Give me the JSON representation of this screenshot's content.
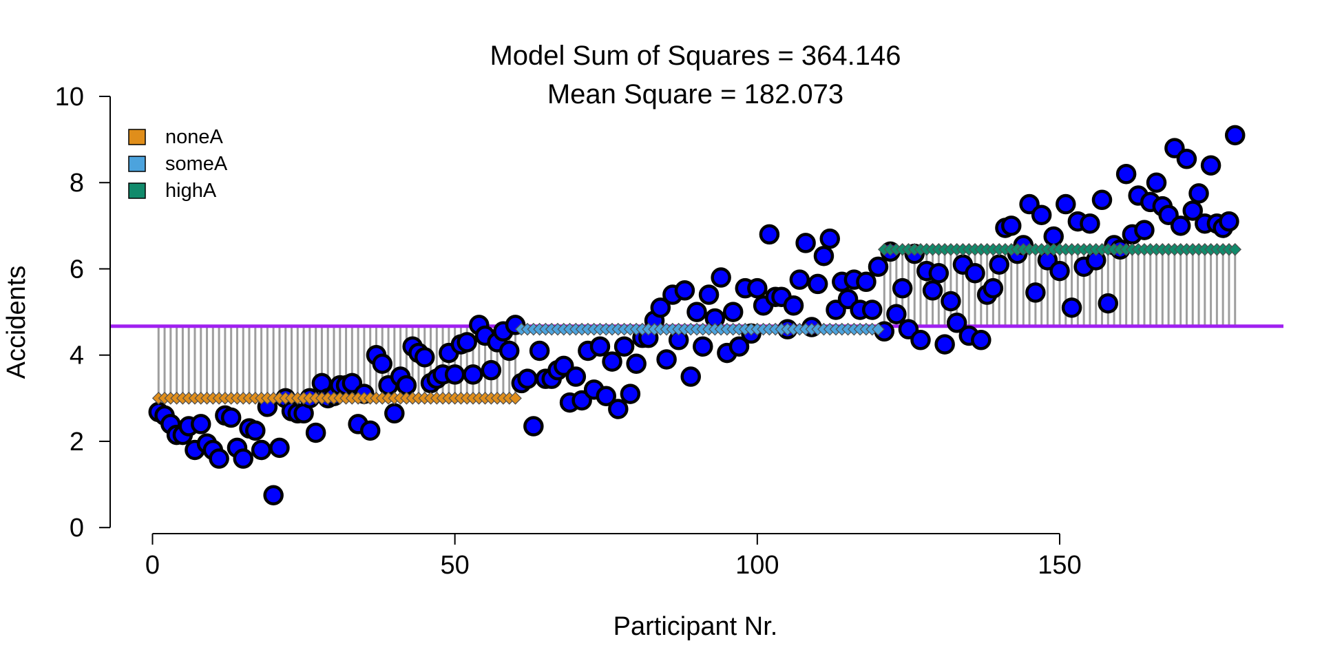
{
  "chart_data": {
    "type": "scatter",
    "title_line1": "Model Sum of Squares = 364.146",
    "title_line2": "Mean Square = 182.073",
    "xlabel": "Participant Nr.",
    "ylabel": "Accidents",
    "xlim": [
      -7,
      187
    ],
    "ylim": [
      -0.3,
      10
    ],
    "x_ticks": [
      0,
      50,
      100,
      150
    ],
    "y_ticks": [
      0,
      2,
      4,
      6,
      8,
      10
    ],
    "grand_mean": 4.67,
    "legend_position": "top-left",
    "legend": [
      {
        "label": "noneA",
        "color": "#E08E1B"
      },
      {
        "label": "someA",
        "color": "#4CA3DD"
      },
      {
        "label": "highA",
        "color": "#118A6B"
      }
    ],
    "colors": {
      "points": "#0000FF",
      "grand_mean_line": "#A020F0",
      "deviation_segments": "#9E9E9E",
      "diamond_outline": "#505050"
    },
    "groups": [
      {
        "name": "noneA",
        "x_start": 1,
        "x_end": 60,
        "mean": 3.0,
        "color": "#E08E1B"
      },
      {
        "name": "someA",
        "x_start": 61,
        "x_end": 120,
        "mean": 4.6,
        "color": "#4CA3DD"
      },
      {
        "name": "highA",
        "x_start": 121,
        "x_end": 180,
        "mean": 6.45,
        "color": "#118A6B"
      }
    ],
    "points": [
      2.68,
      2.6,
      2.4,
      2.15,
      2.15,
      2.35,
      1.8,
      2.4,
      1.95,
      1.8,
      1.6,
      2.6,
      2.55,
      1.85,
      1.6,
      2.3,
      2.25,
      1.8,
      2.8,
      0.75,
      1.85,
      3.0,
      2.7,
      2.65,
      2.65,
      3.0,
      2.2,
      3.35,
      3.0,
      3.05,
      3.3,
      3.3,
      3.35,
      2.4,
      3.1,
      2.25,
      4.0,
      3.8,
      3.3,
      2.65,
      3.5,
      3.3,
      4.2,
      4.05,
      3.95,
      3.35,
      3.45,
      3.55,
      4.05,
      3.55,
      4.25,
      4.3,
      3.55,
      4.7,
      4.45,
      3.65,
      4.3,
      4.55,
      4.1,
      4.7,
      3.35,
      3.45,
      2.35,
      4.1,
      3.45,
      3.45,
      3.65,
      3.75,
      2.9,
      3.5,
      2.95,
      4.1,
      3.2,
      4.2,
      3.05,
      3.85,
      2.75,
      4.2,
      3.1,
      3.8,
      4.4,
      4.4,
      4.8,
      5.1,
      3.9,
      5.4,
      4.35,
      5.5,
      3.5,
      5.0,
      4.2,
      5.4,
      4.85,
      5.8,
      4.05,
      5.0,
      4.2,
      5.55,
      4.5,
      5.55,
      5.15,
      6.8,
      5.35,
      5.35,
      4.6,
      5.15,
      5.75,
      6.6,
      4.65,
      5.65,
      6.3,
      6.7,
      5.05,
      5.7,
      5.3,
      5.75,
      5.05,
      5.7,
      5.05,
      6.05,
      4.55,
      6.4,
      4.95,
      5.55,
      4.6,
      6.35,
      4.35,
      5.95,
      5.5,
      5.9,
      4.25,
      5.25,
      4.75,
      6.1,
      4.45,
      5.9,
      4.35,
      5.4,
      5.55,
      6.1,
      6.95,
      7.0,
      6.35,
      6.55,
      7.5,
      5.45,
      7.25,
      6.2,
      6.75,
      5.95,
      7.5,
      5.1,
      7.1,
      6.05,
      7.05,
      6.2,
      7.6,
      5.2,
      6.55,
      6.45,
      8.2,
      6.8,
      7.7,
      6.9,
      7.55,
      8.0,
      7.45,
      7.25,
      8.8,
      7.0,
      8.55,
      7.35,
      7.75,
      7.05,
      8.4,
      7.05,
      6.95,
      7.1,
      9.1
    ]
  }
}
